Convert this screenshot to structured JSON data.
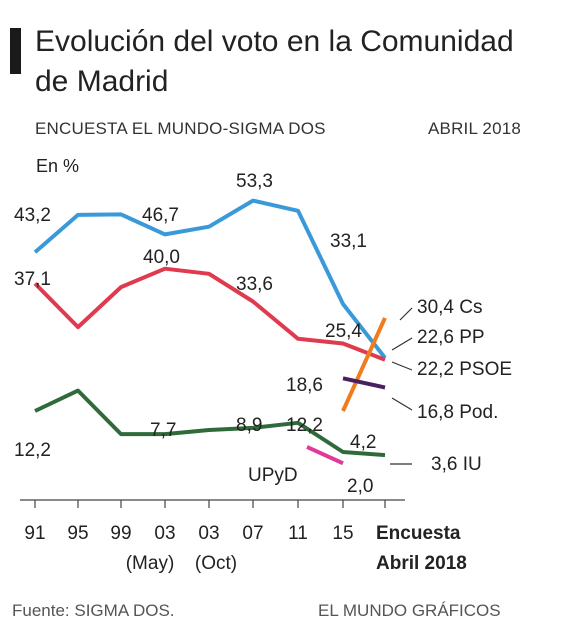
{
  "title": "Evolución del voto en la Comunidad de Madrid",
  "subtitle_left": "ENCUESTA EL MUNDO-SIGMA DOS",
  "subtitle_right": "ABRIL 2018",
  "source": "Fuente: SIGMA DOS.",
  "credit": "EL MUNDO GRÁFICOS",
  "colors": {
    "PP": "#3a9ad9",
    "PSOE": "#e03a4e",
    "IU": "#2f6a3a",
    "Cs": "#f07c1e",
    "Pod.": "#4a1f5f",
    "UPyD": "#e0399a"
  },
  "chart_data": {
    "type": "line",
    "ylabel": "En %",
    "ylim": [
      0,
      60
    ],
    "x_ticks": [
      {
        "label": "91",
        "sub": ""
      },
      {
        "label": "95",
        "sub": ""
      },
      {
        "label": "99",
        "sub": ""
      },
      {
        "label": "03",
        "sub": "(May)"
      },
      {
        "label": "03",
        "sub": "(Oct)"
      },
      {
        "label": "07",
        "sub": ""
      },
      {
        "label": "11",
        "sub": ""
      },
      {
        "label": "15",
        "sub": ""
      },
      {
        "label": "Encuesta",
        "sub": "Abril 2018"
      }
    ],
    "series": [
      {
        "name": "PP",
        "x": [
          0,
          1,
          2,
          3,
          4,
          5,
          6,
          7,
          8
        ],
        "values": [
          43.2,
          50.5,
          50.6,
          46.7,
          48.2,
          53.3,
          51.3,
          33.1,
          22.6
        ]
      },
      {
        "name": "PSOE",
        "x": [
          0,
          1,
          2,
          3,
          4,
          5,
          6,
          7,
          8
        ],
        "values": [
          37.1,
          28.6,
          36.4,
          40.0,
          39.0,
          33.6,
          26.3,
          25.4,
          22.2
        ]
      },
      {
        "name": "IU",
        "x": [
          0,
          1,
          2,
          3,
          4,
          5,
          6,
          7,
          8
        ],
        "values": [
          12.2,
          16.2,
          7.7,
          7.7,
          8.5,
          8.9,
          9.9,
          4.2,
          3.6
        ]
      },
      {
        "name": "Cs",
        "x": [
          7,
          8
        ],
        "values": [
          12.2,
          30.4
        ]
      },
      {
        "name": "Pod.",
        "x": [
          7,
          8
        ],
        "values": [
          18.6,
          16.8
        ]
      },
      {
        "name": "UPyD",
        "x": [
          6.2,
          7
        ],
        "values": [
          5.2,
          2.0
        ]
      }
    ],
    "data_labels": [
      {
        "text": "43,2",
        "color": "#222"
      },
      {
        "text": "46,7",
        "color": "#222"
      },
      {
        "text": "53,3",
        "color": "#222"
      },
      {
        "text": "33,1",
        "color": "#222"
      },
      {
        "text": "37,1",
        "color": "#222"
      },
      {
        "text": "40,0",
        "color": "#222"
      },
      {
        "text": "33,6",
        "color": "#222"
      },
      {
        "text": "25,4",
        "color": "#222"
      },
      {
        "text": "12,2",
        "color": "#222"
      },
      {
        "text": "7,7",
        "color": "#222"
      },
      {
        "text": "8,9",
        "color": "#222"
      },
      {
        "text": "12,2",
        "color": "#222"
      },
      {
        "text": "4,2",
        "color": "#222"
      },
      {
        "text": "18,6",
        "color": "#222"
      },
      {
        "text": "2,0",
        "color": "#222"
      },
      {
        "text": "UPyD",
        "color": "#222"
      }
    ],
    "legend": [
      {
        "value": "30,4",
        "name": "Cs"
      },
      {
        "value": "22,6",
        "name": "PP"
      },
      {
        "value": "22,2",
        "name": "PSOE"
      },
      {
        "value": "16,8",
        "name": "Pod."
      },
      {
        "value": "3,6",
        "name": "IU"
      }
    ]
  }
}
